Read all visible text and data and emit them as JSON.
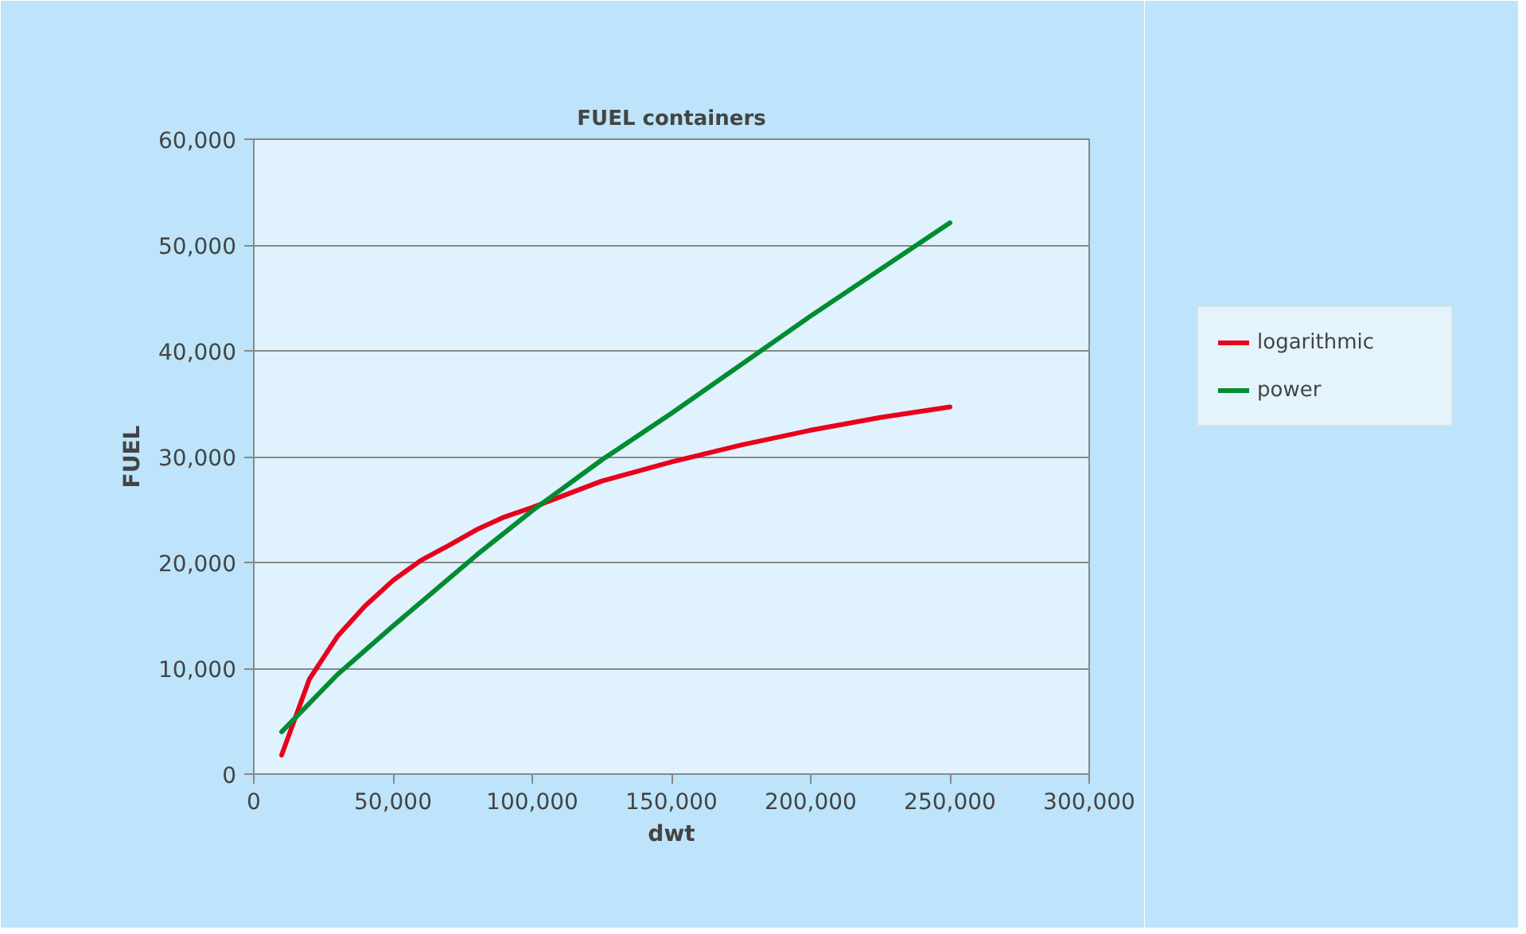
{
  "chart_data": {
    "type": "line",
    "title": "FUEL containers",
    "xlabel": "dwt",
    "ylabel": "FUEL",
    "xlim": [
      0,
      300000
    ],
    "xticks": [
      {
        "value": 0,
        "label": "0"
      },
      {
        "value": 50000,
        "label": "50,000"
      },
      {
        "value": 100000,
        "label": "100,000"
      },
      {
        "value": 150000,
        "label": "150,000"
      },
      {
        "value": 200000,
        "label": "200,000"
      },
      {
        "value": 250000,
        "label": "250,000"
      },
      {
        "value": 300000,
        "label": "300,000"
      }
    ],
    "ylim": [
      0,
      60000
    ],
    "yticks": [
      {
        "value": 0,
        "label": "0"
      },
      {
        "value": 10000,
        "label": "10,000"
      },
      {
        "value": 20000,
        "label": "20,000"
      },
      {
        "value": 30000,
        "label": "30,000"
      },
      {
        "value": 40000,
        "label": "40,000"
      },
      {
        "value": 50000,
        "label": "50,000"
      },
      {
        "value": 60000,
        "label": "60,000"
      }
    ],
    "grid": "y",
    "legend": "right",
    "marker": "none",
    "line_style": "solid",
    "series": [
      {
        "name": "logarithmic",
        "color": "#e8001c",
        "x": [
          10000,
          20000,
          30000,
          40000,
          50000,
          60000,
          70000,
          80000,
          90000,
          100000,
          125000,
          150000,
          175000,
          200000,
          225000,
          250000
        ],
        "values": [
          1800,
          9000,
          13000,
          15900,
          18300,
          20200,
          21600,
          23100,
          24300,
          25200,
          27700,
          29500,
          31100,
          32500,
          33700,
          34700
        ]
      },
      {
        "name": "power",
        "color": "#008c32",
        "x": [
          10000,
          30000,
          50000,
          80000,
          100000,
          125000,
          150000,
          200000,
          250000
        ],
        "values": [
          4000,
          9400,
          14000,
          20700,
          24900,
          29700,
          34100,
          43300,
          52100
        ]
      }
    ]
  }
}
